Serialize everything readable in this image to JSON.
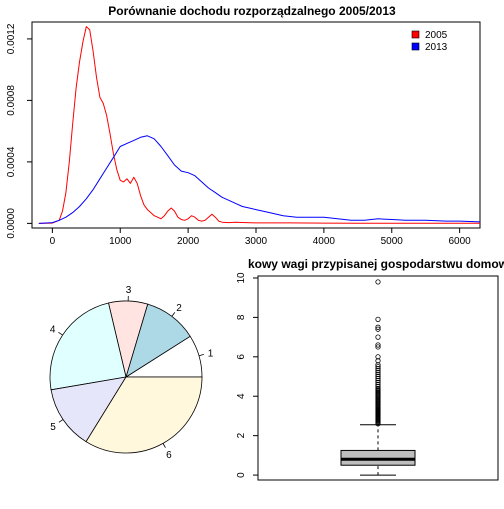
{
  "chart_data": [
    {
      "type": "line",
      "title": "Porównanie dochodu rozporządzalnego 2005/2013",
      "xlabel": "",
      "ylabel": "",
      "xlim": [
        -300,
        6300
      ],
      "ylim": [
        -3e-05,
        0.00131
      ],
      "x_ticks": [
        0,
        1000,
        2000,
        3000,
        4000,
        5000,
        6000
      ],
      "x_tick_labels": [
        "0",
        "1000",
        "2000",
        "3000",
        "4000",
        "5000",
        "6000"
      ],
      "y_ticks": [
        0,
        0.0004,
        0.0008,
        0.0012
      ],
      "y_tick_labels": [
        "0.0000",
        "0.0004",
        "0.0008",
        "0.0012"
      ],
      "legend_position": "top-right",
      "series": [
        {
          "name": "2005",
          "color": "#ff0000",
          "x": [
            -200,
            0,
            100,
            150,
            200,
            250,
            300,
            350,
            400,
            450,
            500,
            550,
            600,
            650,
            700,
            750,
            800,
            850,
            900,
            950,
            1000,
            1050,
            1100,
            1150,
            1200,
            1250,
            1300,
            1350,
            1400,
            1450,
            1500,
            1550,
            1600,
            1650,
            1700,
            1750,
            1800,
            1850,
            1900,
            1950,
            2000,
            2050,
            2100,
            2150,
            2200,
            2250,
            2300,
            2350,
            2400,
            2450,
            2500,
            2600,
            2700,
            2800,
            3000,
            3500,
            4000,
            4500,
            5000,
            5500,
            6000,
            6300
          ],
          "y": [
            0,
            2e-06,
            2e-05,
            8e-05,
            0.0002,
            0.0004,
            0.00065,
            0.00088,
            0.00105,
            0.00118,
            0.00128,
            0.00126,
            0.00112,
            0.00095,
            0.00082,
            0.00078,
            0.0007,
            0.00058,
            0.00045,
            0.00035,
            0.00028,
            0.00027,
            0.00029,
            0.00026,
            0.0003,
            0.00026,
            0.00018,
            0.00012,
            9e-05,
            7e-05,
            5e-05,
            4e-05,
            3e-05,
            5e-05,
            8e-05,
            0.0001,
            8e-05,
            4e-05,
            2.5e-05,
            2e-05,
            3e-05,
            5e-05,
            4e-05,
            2e-05,
            1.5e-05,
            2e-05,
            4e-05,
            6e-05,
            4e-05,
            1.5e-05,
            8e-06,
            5e-06,
            8e-06,
            6e-06,
            3e-06,
            3e-06,
            2e-06,
            1e-06,
            1e-06,
            1e-06,
            1e-06,
            1e-06
          ]
        },
        {
          "name": "2013",
          "color": "#0000ff",
          "x": [
            -200,
            0,
            100,
            200,
            300,
            400,
            500,
            600,
            700,
            800,
            900,
            1000,
            1100,
            1200,
            1300,
            1400,
            1500,
            1600,
            1700,
            1800,
            1900,
            2000,
            2100,
            2200,
            2300,
            2400,
            2500,
            2600,
            2700,
            2800,
            2900,
            3000,
            3200,
            3400,
            3600,
            3800,
            4000,
            4200,
            4400,
            4600,
            4800,
            5000,
            5200,
            5500,
            5800,
            6000,
            6300
          ],
          "y": [
            0,
            5e-06,
            2e-05,
            4e-05,
            7e-05,
            0.00011,
            0.00016,
            0.00022,
            0.00029,
            0.00036,
            0.00043,
            0.0005,
            0.00052,
            0.00054,
            0.00056,
            0.00057,
            0.00055,
            0.0005,
            0.00044,
            0.00038,
            0.00034,
            0.00033,
            0.00031,
            0.00027,
            0.00023,
            0.0002,
            0.00017,
            0.00015,
            0.00013,
            0.00011,
            0.0001,
            9e-05,
            7e-05,
            5e-05,
            4e-05,
            4e-05,
            4e-05,
            3e-05,
            2e-05,
            2e-05,
            3e-05,
            2.5e-05,
            2e-05,
            2e-05,
            1.5e-05,
            1.5e-05,
            1e-05
          ]
        }
      ]
    },
    {
      "type": "pie",
      "title": "",
      "labels": [
        "1",
        "2",
        "3",
        "4",
        "5",
        "6"
      ],
      "values": [
        9.0,
        11.4,
        8.3,
        24.0,
        13.5,
        33.8
      ],
      "colors": [
        "#ffffff",
        "#add8e6",
        "#ffe4e1",
        "#e0ffff",
        "#e6e6fa",
        "#fff8dc"
      ]
    },
    {
      "type": "box",
      "title": "kowy wagi przypisanej gospodarstwu domow",
      "ylim": [
        -0.25,
        10.1
      ],
      "y_ticks": [
        0,
        2,
        4,
        6,
        8,
        10
      ],
      "y_tick_labels": [
        "0",
        "2",
        "4",
        "6",
        "8",
        "10"
      ],
      "min": 0.0,
      "q1": 0.5,
      "median": 0.8,
      "q3": 1.25,
      "whisker_high": 2.55,
      "box_color": "#bebebe",
      "outliers": [
        2.6,
        2.65,
        2.7,
        2.75,
        2.8,
        2.85,
        2.9,
        2.95,
        3.0,
        3.05,
        3.1,
        3.15,
        3.2,
        3.25,
        3.3,
        3.35,
        3.4,
        3.45,
        3.5,
        3.55,
        3.6,
        3.65,
        3.7,
        3.75,
        3.8,
        3.85,
        3.9,
        3.95,
        4.0,
        4.05,
        4.1,
        4.15,
        4.2,
        4.25,
        4.3,
        4.35,
        4.4,
        4.5,
        4.6,
        4.7,
        4.8,
        4.9,
        5.0,
        5.1,
        5.2,
        5.3,
        5.4,
        5.5,
        5.6,
        5.8,
        6.0,
        6.5,
        6.6,
        7.0,
        7.4,
        7.5,
        7.9,
        9.8
      ]
    }
  ]
}
